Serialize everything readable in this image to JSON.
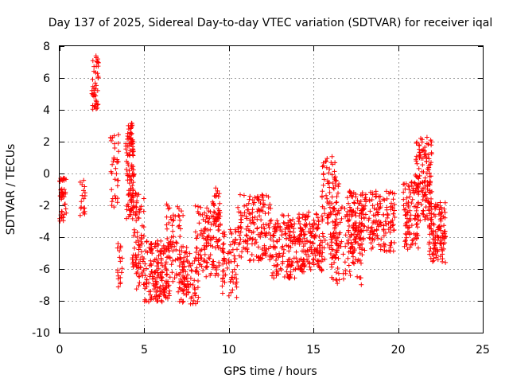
{
  "chart_data": {
    "type": "scatter",
    "title": "Day 137 of 2025, Sidereal Day-to-day VTEC variation (SDTVAR) for receiver iqal",
    "xlabel": "GPS time / hours",
    "ylabel": "SDTVAR / TECUs",
    "xlim": [
      0,
      25
    ],
    "ylim": [
      -10,
      8
    ],
    "xticks": [
      0,
      5,
      10,
      15,
      20,
      25
    ],
    "yticks": [
      -10,
      -8,
      -6,
      -4,
      -2,
      0,
      2,
      4,
      6,
      8
    ],
    "grid": true,
    "marker": "+",
    "color": "#ff0000",
    "series": [
      {
        "name": "SDTVAR",
        "clusters": [
          {
            "x": [
              0.0,
              0.4
            ],
            "y": [
              -3.0,
              -0.2
            ],
            "n": 45
          },
          {
            "x": [
              1.2,
              1.5
            ],
            "y": [
              -2.8,
              -0.4
            ],
            "n": 18
          },
          {
            "x": [
              1.9,
              2.3
            ],
            "y": [
              3.9,
              7.5
            ],
            "n": 45
          },
          {
            "x": [
              3.0,
              3.5
            ],
            "y": [
              -2.2,
              2.5
            ],
            "n": 35
          },
          {
            "x": [
              3.4,
              3.7
            ],
            "y": [
              -7.2,
              -4.3
            ],
            "n": 18
          },
          {
            "x": [
              3.9,
              4.4
            ],
            "y": [
              -3.0,
              3.2
            ],
            "n": 110
          },
          {
            "x": [
              4.3,
              5.0
            ],
            "y": [
              -6.0,
              -1.2
            ],
            "n": 70
          },
          {
            "x": [
              4.5,
              5.0
            ],
            "y": [
              -7.3,
              -5.6
            ],
            "n": 15
          },
          {
            "x": [
              5.0,
              6.5
            ],
            "y": [
              -8.1,
              -4.2
            ],
            "n": 160
          },
          {
            "x": [
              6.3,
              7.3
            ],
            "y": [
              -6.8,
              -1.9
            ],
            "n": 70
          },
          {
            "x": [
              7.0,
              8.2
            ],
            "y": [
              -8.2,
              -4.5
            ],
            "n": 90
          },
          {
            "x": [
              8.0,
              9.5
            ],
            "y": [
              -6.5,
              -2.0
            ],
            "n": 120
          },
          {
            "x": [
              9.0,
              9.5
            ],
            "y": [
              -3.5,
              -0.9
            ],
            "n": 30
          },
          {
            "x": [
              9.6,
              10.5
            ],
            "y": [
              -7.8,
              -3.5
            ],
            "n": 70
          },
          {
            "x": [
              10.5,
              12.5
            ],
            "y": [
              -5.5,
              -1.3
            ],
            "n": 160
          },
          {
            "x": [
              12.5,
              14.0
            ],
            "y": [
              -6.6,
              -2.6
            ],
            "n": 140
          },
          {
            "x": [
              14.0,
              15.5
            ],
            "y": [
              -6.2,
              -2.4
            ],
            "n": 160
          },
          {
            "x": [
              15.5,
              16.5
            ],
            "y": [
              -5.5,
              1.1
            ],
            "n": 100
          },
          {
            "x": [
              16.0,
              18.0
            ],
            "y": [
              -7.0,
              -2.0
            ],
            "n": 130
          },
          {
            "x": [
              17.0,
              19.8
            ],
            "y": [
              -4.9,
              -1.1
            ],
            "n": 220
          },
          {
            "x": [
              20.3,
              21.2
            ],
            "y": [
              -4.8,
              -0.5
            ],
            "n": 90
          },
          {
            "x": [
              21.0,
              22.0
            ],
            "y": [
              -3.0,
              2.3
            ],
            "n": 130
          },
          {
            "x": [
              21.8,
              22.8
            ],
            "y": [
              -5.6,
              -1.8
            ],
            "n": 120
          }
        ]
      }
    ]
  }
}
